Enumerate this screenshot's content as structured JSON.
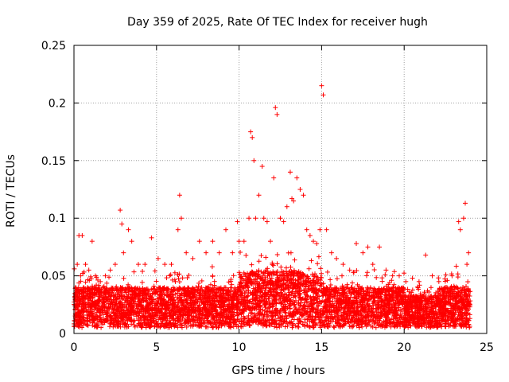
{
  "chart_data": {
    "type": "scatter",
    "title": "Day 359 of 2025, Rate Of TEC Index for receiver hugh",
    "xlabel": "GPS time / hours",
    "ylabel": "ROTI / TECUs",
    "xlim": [
      0,
      25
    ],
    "ylim": [
      0,
      0.25
    ],
    "xticks": [
      0,
      5,
      10,
      15,
      20,
      25
    ],
    "yticks": [
      0,
      0.05,
      0.1,
      0.15,
      0.2,
      0.25
    ],
    "xtick_labels": [
      "0",
      "5",
      "10",
      "15",
      "20",
      "25"
    ],
    "ytick_labels": [
      "0",
      "0.05",
      "0.1",
      "0.15",
      "0.2",
      "0.25"
    ],
    "grid": true,
    "marker": "+",
    "marker_color": "#ff0000",
    "series": [
      {
        "name": "ROTI",
        "x": [
          0.1,
          0.2,
          0.3,
          0.4,
          0.5,
          0.7,
          0.9,
          1.1,
          1.3,
          1.6,
          1.9,
          2.2,
          2.5,
          2.8,
          2.9,
          3.0,
          3.3,
          3.5,
          3.9,
          4.3,
          4.7,
          5.1,
          5.5,
          5.9,
          6.3,
          6.4,
          6.5,
          6.8,
          7.2,
          7.6,
          8.0,
          8.4,
          8.8,
          9.2,
          9.6,
          9.9,
          10.0,
          10.3,
          10.6,
          10.7,
          10.8,
          10.9,
          11.0,
          11.2,
          11.4,
          11.5,
          11.7,
          11.9,
          12.1,
          12.2,
          12.3,
          12.5,
          12.7,
          12.9,
          13.1,
          13.2,
          13.3,
          13.5,
          13.7,
          13.9,
          14.1,
          14.3,
          14.5,
          14.7,
          14.9,
          15.0,
          15.1,
          15.3,
          15.6,
          15.9,
          16.3,
          16.7,
          17.1,
          17.5,
          17.8,
          18.1,
          18.5,
          18.9,
          19.3,
          19.7,
          20.1,
          20.5,
          20.9,
          21.3,
          21.7,
          22.1,
          22.5,
          22.9,
          23.3,
          23.4,
          23.6,
          23.7,
          23.8,
          23.9
        ],
        "y": [
          0.04,
          0.06,
          0.085,
          0.05,
          0.085,
          0.06,
          0.055,
          0.08,
          0.05,
          0.045,
          0.05,
          0.055,
          0.06,
          0.107,
          0.095,
          0.07,
          0.09,
          0.08,
          0.06,
          0.06,
          0.083,
          0.065,
          0.06,
          0.06,
          0.09,
          0.12,
          0.1,
          0.07,
          0.065,
          0.08,
          0.07,
          0.08,
          0.07,
          0.09,
          0.07,
          0.097,
          0.08,
          0.08,
          0.1,
          0.175,
          0.17,
          0.15,
          0.1,
          0.12,
          0.145,
          0.1,
          0.097,
          0.08,
          0.135,
          0.196,
          0.19,
          0.1,
          0.097,
          0.11,
          0.14,
          0.117,
          0.115,
          0.135,
          0.125,
          0.12,
          0.09,
          0.085,
          0.08,
          0.078,
          0.09,
          0.215,
          0.207,
          0.09,
          0.07,
          0.065,
          0.06,
          0.055,
          0.078,
          0.07,
          0.075,
          0.06,
          0.075,
          0.055,
          0.05,
          0.05,
          0.045,
          0.048,
          0.045,
          0.068,
          0.05,
          0.045,
          0.04,
          0.05,
          0.097,
          0.09,
          0.1,
          0.113,
          0.06,
          0.07
        ]
      }
    ]
  }
}
